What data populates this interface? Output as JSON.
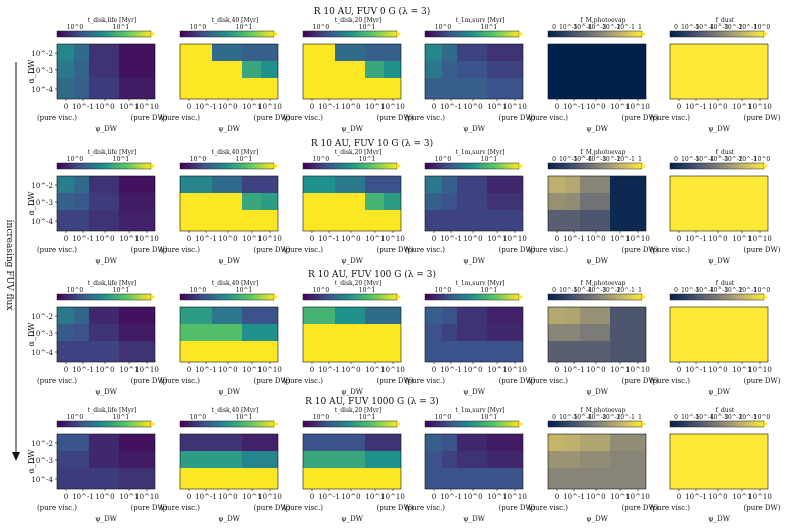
{
  "figure": {
    "side_label": "increasing FUV flux",
    "row_titles": [
      {
        "prefix": "R",
        "text": "10 AU, FUV",
        "flux": "0 G",
        "lambda": "(λ = 3)"
      },
      {
        "prefix": "R",
        "text": "10 AU, FUV",
        "flux": "10 G",
        "lambda": "(λ = 3)"
      },
      {
        "prefix": "R",
        "text": "10 AU, FUV",
        "flux": "100 G",
        "lambda": "(λ = 3)"
      },
      {
        "prefix": "R",
        "text": "10 AU, FUV",
        "flux": "1000 G",
        "lambda": "(λ = 3)"
      }
    ],
    "y_axis_label": "α_DW",
    "colors": {
      "viridis": [
        "#440154",
        "#3b528b",
        "#21918c",
        "#5ec962",
        "#fde725"
      ],
      "cividis": [
        "#00204c",
        "#414d6b",
        "#7c7b78",
        "#bcaf6f",
        "#fee838"
      ]
    }
  },
  "chart_data": [
    {
      "type": "heatmap",
      "panel": "t_disk",
      "colorbar_label": "t_disk,life [Myr]",
      "colorbar_ticks": [
        "10^0",
        "10^1"
      ],
      "colormap": "viridis",
      "x_ticks": [
        "0",
        "10^-1",
        "10^0",
        "10^1",
        "10^10"
      ],
      "y_ticks": [
        "10^-2",
        "10^-3",
        "10^-4"
      ],
      "xlabel": "ψ_DW",
      "x_end_labels": [
        "(pure visc.)",
        "(pure DW)"
      ],
      "grids": [
        [
          [
            0.45,
            0.35,
            0.15,
            0.05,
            0.05
          ],
          [
            0.4,
            0.32,
            0.15,
            0.05,
            0.05
          ],
          [
            0.35,
            0.3,
            0.18,
            0.08,
            0.08
          ]
        ],
        [
          [
            0.42,
            0.35,
            0.15,
            0.05,
            0.05
          ],
          [
            0.3,
            0.28,
            0.18,
            0.08,
            0.08
          ],
          [
            0.2,
            0.2,
            0.15,
            0.1,
            0.1
          ]
        ],
        [
          [
            0.4,
            0.32,
            0.12,
            0.05,
            0.05
          ],
          [
            0.28,
            0.25,
            0.15,
            0.08,
            0.08
          ],
          [
            0.2,
            0.2,
            0.2,
            0.15,
            0.15
          ]
        ],
        [
          [
            0.25,
            0.25,
            0.12,
            0.05,
            0.05
          ],
          [
            0.2,
            0.2,
            0.12,
            0.08,
            0.08
          ],
          [
            0.18,
            0.18,
            0.18,
            0.15,
            0.15
          ]
        ]
      ]
    },
    {
      "type": "heatmap",
      "panel": "t_disk_40",
      "colorbar_label": "t_disk,40 [Myr]",
      "colorbar_ticks": [
        "10^0",
        "10^1"
      ],
      "colormap": "viridis",
      "x_ticks": [
        "0",
        "10^-1",
        "10^0",
        "10^1",
        "10^10"
      ],
      "y_ticks": [
        "10^-2",
        "10^-3",
        "10^-4"
      ],
      "xlabel": "ψ_DW",
      "x_end_labels": [
        "(pure visc.)",
        "(pure DW)"
      ],
      "grids": [
        [
          [
            1.0,
            1.0,
            0.35,
            0.3,
            0.3
          ],
          [
            1.0,
            1.0,
            1.0,
            0.6,
            0.5
          ],
          [
            1.0,
            1.0,
            1.0,
            1.0,
            1.0
          ]
        ],
        [
          [
            0.45,
            0.45,
            0.35,
            0.2,
            0.2
          ],
          [
            1.0,
            1.0,
            1.0,
            0.6,
            0.55
          ],
          [
            1.0,
            1.0,
            1.0,
            1.0,
            1.0
          ]
        ],
        [
          [
            0.55,
            0.55,
            0.4,
            0.25,
            0.25
          ],
          [
            0.7,
            0.7,
            0.7,
            0.5,
            0.5
          ],
          [
            1.0,
            1.0,
            1.0,
            1.0,
            1.0
          ]
        ],
        [
          [
            0.15,
            0.15,
            0.15,
            0.1,
            0.1
          ],
          [
            0.55,
            0.55,
            0.55,
            0.45,
            0.45
          ],
          [
            1.0,
            1.0,
            1.0,
            1.0,
            1.0
          ]
        ]
      ]
    },
    {
      "type": "heatmap",
      "panel": "t_disk_20",
      "colorbar_label": "t_disk,20 [Myr]",
      "colorbar_ticks": [
        "10^0",
        "10^1"
      ],
      "colormap": "viridis",
      "x_ticks": [
        "0",
        "10^-1",
        "10^0",
        "10^1",
        "10^10"
      ],
      "y_ticks": [
        "10^-2",
        "10^-3",
        "10^-4"
      ],
      "xlabel": "ψ_DW",
      "x_end_labels": [
        "(pure visc.)",
        "(pure DW)"
      ],
      "grids": [
        [
          [
            1.0,
            1.0,
            0.35,
            0.3,
            0.3
          ],
          [
            1.0,
            1.0,
            1.0,
            0.6,
            0.5
          ],
          [
            1.0,
            1.0,
            1.0,
            1.0,
            1.0
          ]
        ],
        [
          [
            0.5,
            0.5,
            0.4,
            0.25,
            0.25
          ],
          [
            1.0,
            1.0,
            1.0,
            0.65,
            0.55
          ],
          [
            1.0,
            1.0,
            1.0,
            1.0,
            1.0
          ]
        ],
        [
          [
            0.65,
            0.65,
            0.5,
            0.35,
            0.35
          ],
          [
            1.0,
            1.0,
            1.0,
            1.0,
            1.0
          ],
          [
            1.0,
            1.0,
            1.0,
            1.0,
            1.0
          ]
        ],
        [
          [
            0.25,
            0.25,
            0.25,
            0.15,
            0.15
          ],
          [
            0.6,
            0.6,
            0.6,
            0.5,
            0.5
          ],
          [
            1.0,
            1.0,
            1.0,
            1.0,
            1.0
          ]
        ]
      ]
    },
    {
      "type": "heatmap",
      "panel": "t_dust_surv",
      "colorbar_label": "t_1m,surv [Myr]",
      "colorbar_ticks": [
        "10^0",
        "10^1"
      ],
      "colormap": "viridis",
      "x_ticks": [
        "0",
        "10^-1",
        "10^0",
        "10^1",
        "10^10"
      ],
      "y_ticks": [
        "10^-2",
        "10^-3",
        "10^-4"
      ],
      "xlabel": "ψ_DW",
      "x_end_labels": [
        "(pure visc.)",
        "(pure DW)"
      ],
      "grids": [
        [
          [
            0.45,
            0.35,
            0.2,
            0.15,
            0.15
          ],
          [
            0.4,
            0.3,
            0.25,
            0.2,
            0.2
          ],
          [
            0.3,
            0.3,
            0.3,
            0.25,
            0.25
          ]
        ],
        [
          [
            0.4,
            0.3,
            0.2,
            0.12,
            0.12
          ],
          [
            0.3,
            0.25,
            0.2,
            0.15,
            0.15
          ],
          [
            0.2,
            0.2,
            0.2,
            0.2,
            0.2
          ]
        ],
        [
          [
            0.3,
            0.25,
            0.15,
            0.1,
            0.1
          ],
          [
            0.25,
            0.2,
            0.15,
            0.12,
            0.12
          ],
          [
            0.25,
            0.25,
            0.25,
            0.25,
            0.25
          ]
        ],
        [
          [
            0.3,
            0.25,
            0.12,
            0.08,
            0.08
          ],
          [
            0.25,
            0.2,
            0.15,
            0.12,
            0.12
          ],
          [
            0.25,
            0.25,
            0.25,
            0.25,
            0.25
          ]
        ]
      ]
    },
    {
      "type": "heatmap",
      "panel": "f_photoevap",
      "colorbar_label": "f_M,photoevap",
      "colorbar_ticks": [
        "0",
        "10^-5",
        "10^-4",
        "10^-3",
        "10^-2",
        "10^-1",
        "1"
      ],
      "colormap": "cividis",
      "x_ticks": [
        "0",
        "10^-1",
        "10^0",
        "10^1",
        "10^10"
      ],
      "y_ticks": [
        "10^-2",
        "10^-3",
        "10^-4"
      ],
      "xlabel": "ψ_DW",
      "x_end_labels": [
        "(pure visc.)",
        "(pure DW)"
      ],
      "grids": [
        [
          [
            0.0,
            0.0,
            0.0,
            0.0,
            0.0
          ],
          [
            0.0,
            0.0,
            0.0,
            0.0,
            0.0
          ],
          [
            0.0,
            0.0,
            0.0,
            0.0,
            0.0
          ]
        ],
        [
          [
            0.75,
            0.72,
            0.55,
            0.05,
            0.05
          ],
          [
            0.6,
            0.58,
            0.45,
            0.05,
            0.05
          ],
          [
            0.35,
            0.35,
            0.3,
            0.05,
            0.05
          ]
        ],
        [
          [
            0.72,
            0.7,
            0.6,
            0.3,
            0.3
          ],
          [
            0.55,
            0.55,
            0.5,
            0.3,
            0.3
          ],
          [
            0.35,
            0.35,
            0.35,
            0.3,
            0.3
          ]
        ],
        [
          [
            0.78,
            0.76,
            0.7,
            0.58,
            0.58
          ],
          [
            0.62,
            0.62,
            0.58,
            0.55,
            0.55
          ],
          [
            0.55,
            0.55,
            0.55,
            0.55,
            0.55
          ]
        ]
      ]
    },
    {
      "type": "heatmap",
      "panel": "f_dust",
      "colorbar_label": "f_dust",
      "colorbar_ticks": [
        "0",
        "10^-5",
        "10^-4",
        "10^-3",
        "10^-2",
        "10^-1",
        "10^0"
      ],
      "colormap": "cividis",
      "x_ticks": [
        "0",
        "10^-1",
        "10^0",
        "10^1",
        "10^10"
      ],
      "y_ticks": [
        "10^-2",
        "10^-3",
        "10^-4"
      ],
      "xlabel": "ψ_DW",
      "x_end_labels": [
        "(pure visc.)",
        "(pure DW)"
      ],
      "grids": [
        [
          [
            1.0,
            1.0,
            1.0,
            1.0,
            1.0
          ],
          [
            1.0,
            1.0,
            1.0,
            1.0,
            1.0
          ],
          [
            1.0,
            1.0,
            1.0,
            1.0,
            1.0
          ]
        ],
        [
          [
            1.0,
            1.0,
            1.0,
            1.0,
            1.0
          ],
          [
            1.0,
            1.0,
            1.0,
            1.0,
            1.0
          ],
          [
            1.0,
            1.0,
            1.0,
            1.0,
            1.0
          ]
        ],
        [
          [
            1.0,
            1.0,
            1.0,
            1.0,
            1.0
          ],
          [
            1.0,
            1.0,
            1.0,
            1.0,
            1.0
          ],
          [
            1.0,
            1.0,
            1.0,
            1.0,
            1.0
          ]
        ],
        [
          [
            1.0,
            1.0,
            1.0,
            1.0,
            1.0
          ],
          [
            1.0,
            1.0,
            1.0,
            1.0,
            1.0
          ],
          [
            1.0,
            1.0,
            1.0,
            1.0,
            1.0
          ]
        ]
      ]
    }
  ]
}
